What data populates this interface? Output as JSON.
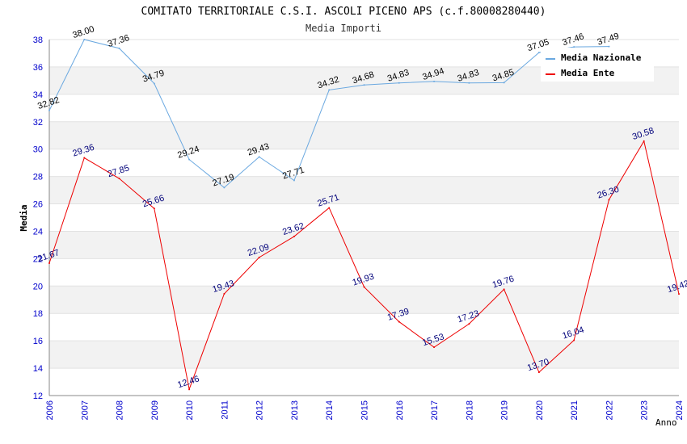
{
  "chart_data": {
    "type": "line",
    "title": "COMITATO TERRITORIALE C.S.I. ASCOLI PICENO APS (c.f.80008280440)",
    "subtitle": "Media Importi",
    "xlabel": "Anno",
    "ylabel": "Media",
    "ylim": [
      12,
      38
    ],
    "yticks": [
      12,
      14,
      16,
      18,
      20,
      22,
      24,
      26,
      28,
      30,
      32,
      34,
      36,
      38
    ],
    "x": [
      2006,
      2007,
      2008,
      2009,
      2010,
      2011,
      2012,
      2013,
      2014,
      2015,
      2016,
      2017,
      2018,
      2019,
      2020,
      2021,
      2022,
      2023,
      2024
    ],
    "grid": "horizontal bands",
    "legend_position": "top-right",
    "series": [
      {
        "name": "Media Nazionale",
        "color": "#6aa8e0",
        "labels": [
          "32.82",
          "38.00",
          "37.36",
          "34.79",
          "29.24",
          "27.19",
          "29.43",
          "27.71",
          "34.32",
          "34.68",
          "34.83",
          "34.94",
          "34.83",
          "34.85",
          "37.05",
          "37.46",
          "37.49",
          "",
          ""
        ],
        "values": [
          32.82,
          38.0,
          37.36,
          34.79,
          29.24,
          27.19,
          29.43,
          27.71,
          34.32,
          34.68,
          34.83,
          34.94,
          34.83,
          34.85,
          37.05,
          37.46,
          37.49,
          null,
          null
        ]
      },
      {
        "name": "Media Ente",
        "color": "#ee0000",
        "labels": [
          "21.67",
          "29.36",
          "27.85",
          "25.66",
          "12.46",
          "19.43",
          "22.09",
          "23.62",
          "25.71",
          "19.93",
          "17.39",
          "15.53",
          "17.23",
          "19.76",
          "13.70",
          "16.04",
          "26.30",
          "30.58",
          "19.42"
        ],
        "values": [
          21.67,
          29.36,
          27.85,
          25.66,
          12.46,
          19.43,
          22.09,
          23.62,
          25.71,
          19.93,
          17.39,
          15.53,
          17.23,
          19.76,
          13.7,
          16.04,
          26.3,
          30.58,
          19.42
        ]
      }
    ]
  }
}
